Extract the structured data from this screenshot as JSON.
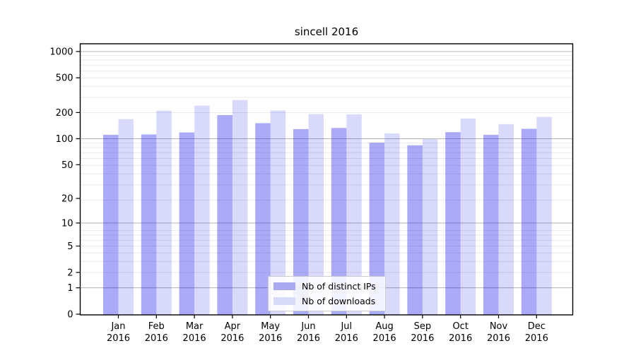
{
  "title": "sincell 2016",
  "chart_data": {
    "type": "bar",
    "title": "sincell 2016",
    "categories": [
      "Jan",
      "Feb",
      "Mar",
      "Apr",
      "May",
      "Jun",
      "Jul",
      "Aug",
      "Sep",
      "Oct",
      "Nov",
      "Dec"
    ],
    "category_year": "2016",
    "series": [
      {
        "name": "Nb of distinct IPs",
        "legend_color": "#a9a9f0",
        "fill": "rgba(20,20,235,0.36)",
        "values": [
          111,
          112,
          118,
          187,
          151,
          129,
          133,
          90,
          84,
          119,
          111,
          130
        ]
      },
      {
        "name": "Nb of downloads",
        "legend_color": "#d9d9f8",
        "fill": "rgba(20,20,235,0.16)",
        "values": [
          168,
          210,
          240,
          278,
          211,
          192,
          191,
          115,
          99,
          171,
          147,
          178
        ]
      }
    ],
    "yscale": "log1p",
    "yticks": [
      0,
      1,
      2,
      5,
      10,
      20,
      50,
      100,
      200,
      500,
      1000
    ],
    "major_grid_ticks": [
      1,
      10,
      100,
      1000
    ],
    "ylim": [
      0,
      1250
    ],
    "xlabel": "",
    "ylabel": "",
    "grid": true,
    "legend_position": "lower center",
    "colors": {
      "major_grid": "#b4b4b4",
      "minor_grid": "#e9e9e9",
      "spine": "#000000",
      "tick_label": "#000000"
    }
  }
}
